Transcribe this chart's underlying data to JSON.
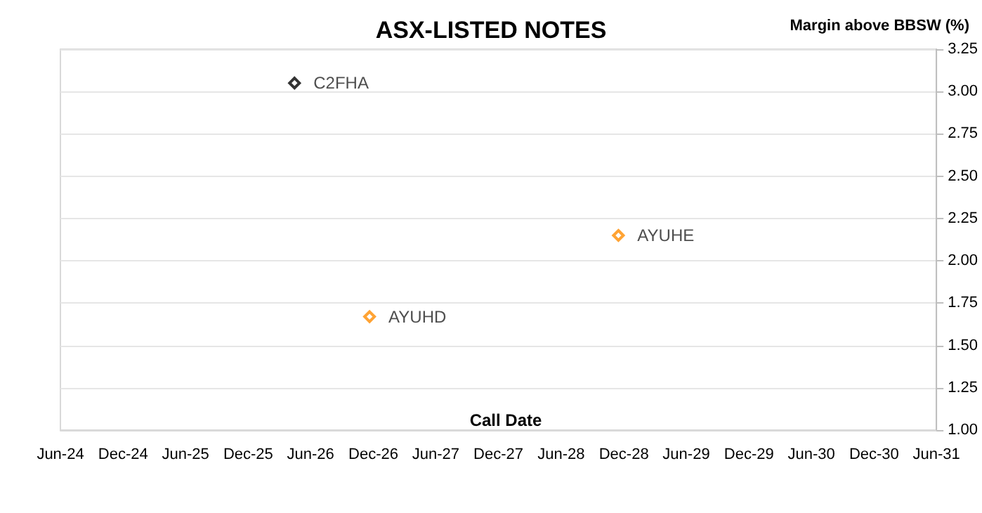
{
  "chart_data": {
    "type": "scatter",
    "title": "ASX-LISTED NOTES",
    "xlabel": "Call Date",
    "ylabel": "Margin above BBSW (%)",
    "series": [
      {
        "name": "C2FHA",
        "color": "#000000",
        "x": [
          "2026-04-15"
        ],
        "values": [
          3.05
        ]
      },
      {
        "name": "AYUHD",
        "color": "#ff8c00",
        "x": [
          "2026-11-20"
        ],
        "values": [
          1.67
        ]
      },
      {
        "name": "AYUHE",
        "color": "#ff8c00",
        "x": [
          "2028-11-15"
        ],
        "values": [
          2.15
        ]
      }
    ],
    "xlim": [
      "2024-06",
      "2031-06"
    ],
    "xticks": [
      {
        "value": "2024-06",
        "label": "Jun-24"
      },
      {
        "value": "2024-12",
        "label": "Dec-24"
      },
      {
        "value": "2025-06",
        "label": "Jun-25"
      },
      {
        "value": "2025-12",
        "label": "Dec-25"
      },
      {
        "value": "2026-06",
        "label": "Jun-26"
      },
      {
        "value": "2026-12",
        "label": "Dec-26"
      },
      {
        "value": "2027-06",
        "label": "Jun-27"
      },
      {
        "value": "2027-12",
        "label": "Dec-27"
      },
      {
        "value": "2028-06",
        "label": "Jun-28"
      },
      {
        "value": "2028-12",
        "label": "Dec-28"
      },
      {
        "value": "2029-06",
        "label": "Jun-29"
      },
      {
        "value": "2029-12",
        "label": "Dec-29"
      },
      {
        "value": "2030-06",
        "label": "Jun-30"
      },
      {
        "value": "2030-12",
        "label": "Dec-30"
      },
      {
        "value": "2031-06",
        "label": "Jun-31"
      }
    ],
    "ylim": [
      1,
      3.25
    ],
    "yticks": [
      {
        "value": 1,
        "label": "1.00"
      },
      {
        "value": 1.25,
        "label": "1.25"
      },
      {
        "value": 1.5,
        "label": "1.50"
      },
      {
        "value": 1.75,
        "label": "1.75"
      },
      {
        "value": 2,
        "label": "2.00"
      },
      {
        "value": 2.25,
        "label": "2.25"
      },
      {
        "value": 2.5,
        "label": "2.50"
      },
      {
        "value": 2.75,
        "label": "2.75"
      },
      {
        "value": 3,
        "label": "3.00"
      },
      {
        "value": 3.25,
        "label": "3.25"
      }
    ],
    "grid": "y",
    "marker": "diamond",
    "legend": false
  }
}
